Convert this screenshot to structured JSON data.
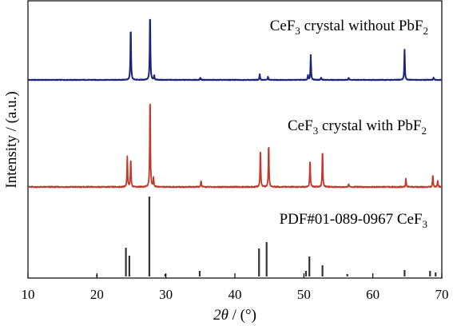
{
  "chart_data": {
    "type": "line",
    "xlabel": "2θ / (°)",
    "ylabel": "Intensity / (a.u.)",
    "xlim": [
      10,
      70
    ],
    "xticks": [
      10,
      20,
      30,
      40,
      50,
      60,
      70
    ],
    "y_ticks_shown": false,
    "grid": false,
    "series": [
      {
        "name": "CeF3 crystal without PbF2",
        "label_prefix": "CeF",
        "label_sub": "3",
        "label_suffix": " crystal without PbF",
        "label_sub2": "2",
        "color": "#1a237e",
        "peaks": [
          {
            "x": 24.9,
            "y": 68
          },
          {
            "x": 27.7,
            "y": 86
          },
          {
            "x": 28.3,
            "y": 6
          },
          {
            "x": 35.0,
            "y": 3
          },
          {
            "x": 43.6,
            "y": 7
          },
          {
            "x": 44.8,
            "y": 4
          },
          {
            "x": 50.6,
            "y": 6
          },
          {
            "x": 51.0,
            "y": 31
          },
          {
            "x": 52.5,
            "y": 3
          },
          {
            "x": 56.5,
            "y": 3
          },
          {
            "x": 64.6,
            "y": 38
          },
          {
            "x": 68.8,
            "y": 3
          }
        ]
      },
      {
        "name": "CeF3 crystal with PbF2",
        "label_prefix": "CeF",
        "label_sub": "3",
        "label_suffix": " crystal with PbF",
        "label_sub2": "2",
        "color": "#c0392b",
        "peaks": [
          {
            "x": 24.4,
            "y": 38
          },
          {
            "x": 24.9,
            "y": 36
          },
          {
            "x": 27.7,
            "y": 118
          },
          {
            "x": 28.2,
            "y": 12
          },
          {
            "x": 35.1,
            "y": 8
          },
          {
            "x": 43.7,
            "y": 49
          },
          {
            "x": 44.9,
            "y": 56
          },
          {
            "x": 50.9,
            "y": 35
          },
          {
            "x": 52.7,
            "y": 48
          },
          {
            "x": 56.5,
            "y": 4
          },
          {
            "x": 64.8,
            "y": 11
          },
          {
            "x": 68.7,
            "y": 16
          },
          {
            "x": 69.4,
            "y": 8
          }
        ]
      },
      {
        "name": "PDF#01-089-0967 CeF3",
        "label_prefix": "PDF#01-089-0967 CeF",
        "label_sub": "3",
        "label_suffix": "",
        "label_sub2": "",
        "color": "#333333",
        "type": "stick",
        "peaks": [
          {
            "x": 20.0,
            "y": 2
          },
          {
            "x": 24.2,
            "y": 36
          },
          {
            "x": 24.7,
            "y": 26
          },
          {
            "x": 27.6,
            "y": 100
          },
          {
            "x": 29.9,
            "y": 3
          },
          {
            "x": 34.9,
            "y": 7
          },
          {
            "x": 43.5,
            "y": 35
          },
          {
            "x": 44.6,
            "y": 43
          },
          {
            "x": 50.3,
            "y": 7
          },
          {
            "x": 50.8,
            "y": 25
          },
          {
            "x": 52.7,
            "y": 14
          },
          {
            "x": 56.3,
            "y": 3
          },
          {
            "x": 64.6,
            "y": 8
          },
          {
            "x": 68.3,
            "y": 7
          },
          {
            "x": 69.1,
            "y": 5
          }
        ]
      }
    ]
  }
}
